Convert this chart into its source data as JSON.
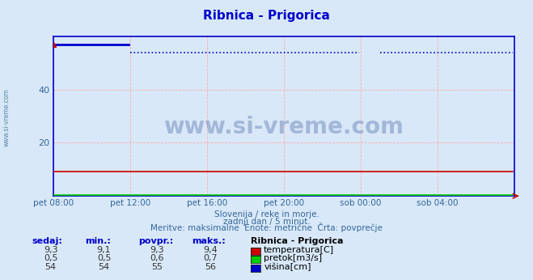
{
  "title": "Ribnica - Prigorica",
  "title_color": "#0000cc",
  "bg_color": "#d8e8f8",
  "plot_bg_color": "#d8e8f8",
  "watermark": "www.si-vreme.com",
  "watermark_color": "#1a3a8a",
  "side_label": "www.si-vreme.com",
  "subtitle1": "Slovenija / reke in morje.",
  "subtitle2": "zadnji dan / 5 minut.",
  "subtitle3": "Meritve: maksimalne  Enote: metrične  Črta: povprečje",
  "xtick_labels": [
    "pet 08:00",
    "pet 12:00",
    "pet 16:00",
    "pet 20:00",
    "sob 00:00",
    "sob 04:00"
  ],
  "xtick_positions": [
    0,
    48,
    96,
    144,
    192,
    240
  ],
  "ytick_labels": [
    "20",
    "40"
  ],
  "ytick_positions": [
    20,
    40
  ],
  "grid_color": "#ffaaaa",
  "grid_vcolor": "#ffaaaa",
  "xlim": [
    0,
    288
  ],
  "ylim": [
    0,
    60
  ],
  "spine_color": "#0000cc",
  "temp_color": "#cc0000",
  "flow_color": "#00cc00",
  "height_color": "#0000cc",
  "temp_line_y": 9.3,
  "flow_line_y": 0.5,
  "height_line_y_solid": 57.0,
  "height_line_y_dot": 54.0,
  "height_solid_end": 48,
  "height_gap_start": 192,
  "n_points": 288,
  "temp_value": "9,3",
  "temp_min": "9,1",
  "temp_avg": "9,3",
  "temp_max": "9,4",
  "flow_value": "0,5",
  "flow_min": "0,5",
  "flow_avg": "0,6",
  "flow_max": "0,7",
  "height_value": "54",
  "height_min": "54",
  "height_avg": "55",
  "height_max": "56",
  "col_header": [
    "sedaj:",
    "min.:",
    "povpr.:",
    "maks.:",
    "Ribnica - Prigorica"
  ],
  "legend_labels": [
    "temperatura[C]",
    "pretok[m3/s]",
    "višina[cm]"
  ]
}
